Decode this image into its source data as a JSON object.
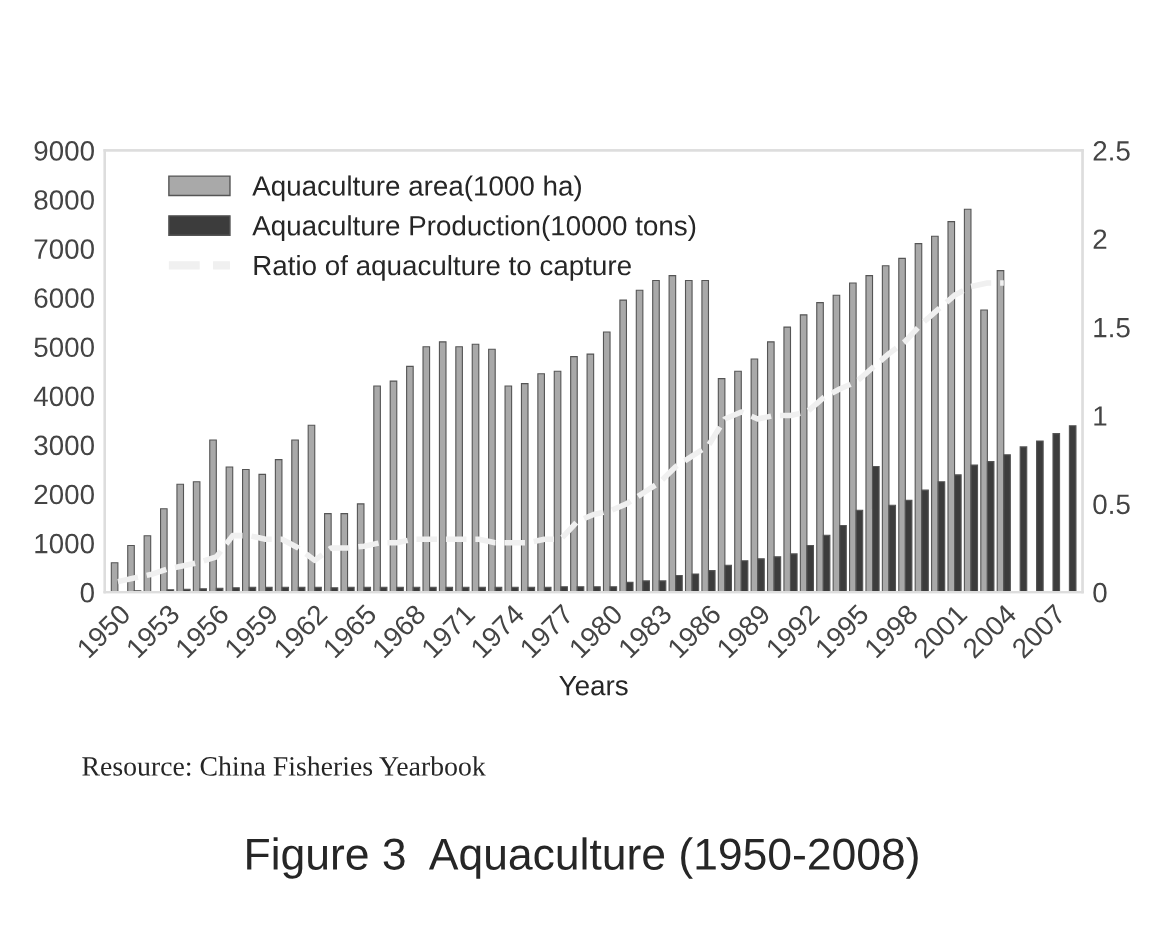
{
  "chart_data": {
    "type": "bar",
    "title": "Figure 3  Aquaculture (1950-2008)",
    "xlabel": "Years",
    "annotations": [
      "Resource: China Fisheries Yearbook"
    ],
    "categories": [
      "1950",
      null,
      null,
      "1953",
      null,
      null,
      "1956",
      null,
      null,
      "1959",
      null,
      null,
      "1962",
      null,
      null,
      "1965",
      null,
      null,
      "1968",
      null,
      null,
      "1971",
      null,
      null,
      "1974",
      null,
      null,
      "1977",
      null,
      null,
      "1980",
      null,
      null,
      "1983",
      null,
      null,
      "1986",
      null,
      null,
      "1989",
      null,
      null,
      "1992",
      null,
      null,
      "1995",
      null,
      null,
      "1998",
      null,
      null,
      "2001",
      null,
      null,
      "2004",
      null,
      null,
      "2007",
      null
    ],
    "series": [
      {
        "name": "Aquaculture area(1000 ha)",
        "axis": "y",
        "color": "#a9a9a9",
        "values": [
          600,
          950,
          1150,
          1700,
          2200,
          2250,
          3100,
          2550,
          2500,
          2400,
          2700,
          3100,
          3400,
          1600,
          1600,
          1800,
          4200,
          4300,
          4600,
          5000,
          5100,
          5000,
          5050,
          4950,
          4200,
          4250,
          4450,
          4500,
          4800,
          4850,
          5300,
          5950,
          6150,
          6350,
          6450,
          6350,
          6350,
          4350,
          4500,
          4750,
          5100,
          5400,
          5650,
          5900,
          6050,
          6300,
          6450,
          6650,
          6800,
          7100,
          7250,
          7550,
          7800,
          5750,
          6550,
          null,
          null,
          null,
          null
        ]
      },
      {
        "name": "Aquaculture Production(10000 tons)",
        "axis": "y",
        "color": "#3c3c3c",
        "values": [
          null,
          30,
          null,
          50,
          60,
          70,
          80,
          90,
          100,
          100,
          100,
          100,
          100,
          90,
          100,
          100,
          100,
          100,
          100,
          100,
          100,
          100,
          100,
          100,
          100,
          100,
          100,
          110,
          110,
          110,
          110,
          200,
          230,
          230,
          340,
          370,
          440,
          550,
          640,
          680,
          720,
          780,
          950,
          1160,
          1360,
          1670,
          2560,
          1770,
          1870,
          2080,
          2250,
          2390,
          2590,
          2660,
          2800,
          2960,
          3080,
          3230,
          3390
        ]
      },
      {
        "name": "Ratio of aquaculture to capture",
        "type": "line",
        "axis": "y2",
        "color": "#f0f0f0",
        "line_style": "dashed",
        "values": [
          0.06,
          0.08,
          0.1,
          0.13,
          0.15,
          0.17,
          0.2,
          0.32,
          0.32,
          0.3,
          0.3,
          0.25,
          0.18,
          0.25,
          0.25,
          0.26,
          0.28,
          0.28,
          0.3,
          0.3,
          0.3,
          0.3,
          0.3,
          0.28,
          0.28,
          0.28,
          0.3,
          0.3,
          0.4,
          0.44,
          0.46,
          0.5,
          0.56,
          0.62,
          0.71,
          0.77,
          0.83,
          0.98,
          1.02,
          0.98,
          1.0,
          1.0,
          1.02,
          1.1,
          1.15,
          1.19,
          1.27,
          1.35,
          1.42,
          1.52,
          1.6,
          1.68,
          1.73,
          1.75,
          1.75,
          null,
          null,
          null,
          null
        ]
      }
    ],
    "ylim": [
      0,
      9000
    ],
    "yticks": [
      0,
      1000,
      2000,
      3000,
      4000,
      5000,
      6000,
      7000,
      8000,
      9000
    ],
    "y2lim": [
      0,
      2.5
    ],
    "y2ticks": [
      0,
      0.5,
      1,
      1.5,
      2,
      2.5
    ],
    "legend": "top left",
    "grid": false
  }
}
